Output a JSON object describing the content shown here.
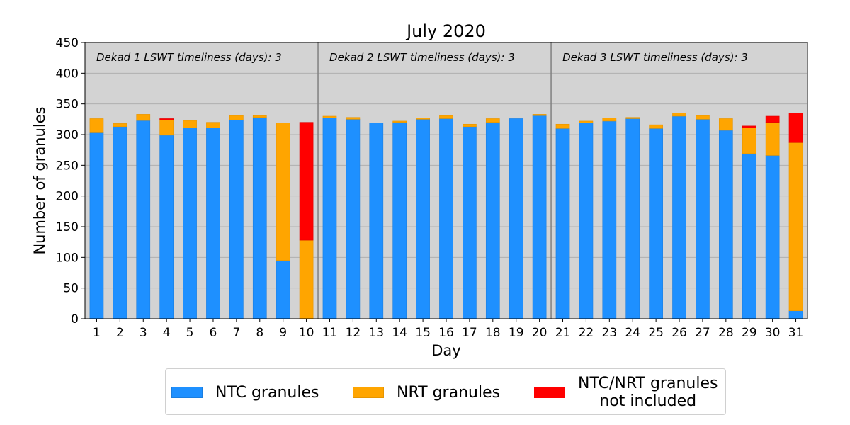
{
  "chart_data": {
    "type": "bar",
    "stacked": true,
    "title": "July 2020",
    "xlabel": "Day",
    "ylabel": "Number of granules",
    "ylim": [
      0,
      450
    ],
    "yticks": [
      0,
      50,
      100,
      150,
      200,
      250,
      300,
      350,
      400,
      450
    ],
    "grid": true,
    "legend_position": "bottom",
    "categories": [
      "1",
      "2",
      "3",
      "4",
      "5",
      "6",
      "7",
      "8",
      "9",
      "10",
      "11",
      "12",
      "13",
      "14",
      "15",
      "16",
      "17",
      "18",
      "19",
      "20",
      "21",
      "22",
      "23",
      "24",
      "25",
      "26",
      "27",
      "28",
      "29",
      "30",
      "31"
    ],
    "series": [
      {
        "name": "NTC granules",
        "color": "#1e90ff",
        "values": [
          303,
          313,
          323,
          299,
          311,
          311,
          324,
          328,
          95,
          0,
          327,
          325,
          319,
          320,
          325,
          326,
          313,
          320,
          326,
          331,
          310,
          319,
          322,
          326,
          310,
          330,
          325,
          307,
          269,
          266,
          13
        ]
      },
      {
        "name": "NRT granules",
        "color": "#ffa500",
        "values": [
          23,
          5,
          10,
          25,
          12,
          9,
          7,
          3,
          224,
          128,
          3,
          3,
          0,
          2,
          2,
          5,
          4,
          6,
          0,
          2,
          7,
          3,
          5,
          2,
          6,
          5,
          6,
          19,
          42,
          54,
          274
        ]
      },
      {
        "name": "NTC/NRT granules\nnot included",
        "color": "#ff0000",
        "values": [
          0,
          0,
          0,
          2,
          0,
          0,
          0,
          0,
          0,
          192,
          0,
          0,
          0,
          0,
          0,
          0,
          0,
          0,
          0,
          0,
          0,
          0,
          0,
          0,
          0,
          0,
          0,
          0,
          3,
          10,
          48
        ]
      }
    ],
    "dekad_dividers_after_day": [
      10,
      20
    ],
    "annotations": [
      "Dekad 1 LSWT timeliness (days): 3",
      "Dekad 2 LSWT timeliness (days): 3",
      "Dekad 3 LSWT timeliness (days): 3"
    ],
    "colors": {
      "background": "#d3d3d3",
      "grid": "#b0b0b0",
      "divider": "#808080"
    }
  }
}
